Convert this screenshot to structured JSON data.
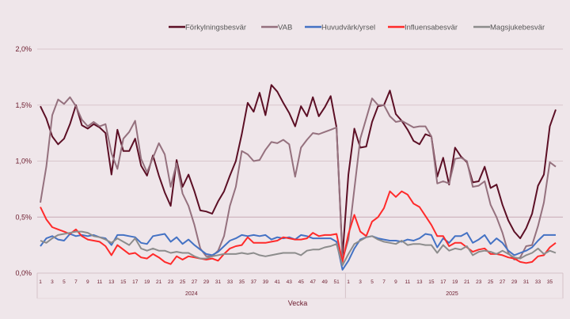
{
  "chart_data": {
    "type": "line",
    "title": "",
    "xlabel": "Vecka",
    "ylabel": "",
    "ylim": [
      0,
      2.0
    ],
    "y_ticks": [
      "0,0%",
      "0,5%",
      "1,0%",
      "1,5%",
      "2,0%"
    ],
    "y_tick_values": [
      0,
      0.5,
      1.0,
      1.5,
      2.0
    ],
    "grid": true,
    "legend_position": "top-right",
    "groups": [
      {
        "year": "2024",
        "weeks": [
          1,
          2,
          3,
          4,
          5,
          6,
          7,
          8,
          9,
          10,
          11,
          12,
          13,
          14,
          15,
          16,
          17,
          18,
          19,
          20,
          21,
          22,
          23,
          24,
          25,
          26,
          27,
          28,
          29,
          30,
          31,
          32,
          33,
          34,
          35,
          36,
          37,
          38,
          39,
          40,
          41,
          42,
          43,
          44,
          45,
          46,
          47,
          48,
          49,
          50,
          51,
          52
        ]
      },
      {
        "year": "2025",
        "weeks": [
          1,
          2,
          3,
          4,
          5,
          6,
          7,
          8,
          9,
          10,
          11,
          12,
          13,
          14,
          15,
          16,
          17,
          18,
          19,
          20,
          21,
          22,
          23,
          24,
          25,
          26,
          27,
          28,
          29,
          30,
          31,
          32,
          33,
          34,
          35,
          36
        ]
      }
    ],
    "series": [
      {
        "name": "Förkylningsbesvär",
        "color": "#5c0f25",
        "values": [
          1.49,
          1.38,
          1.22,
          1.15,
          1.2,
          1.33,
          1.5,
          1.32,
          1.29,
          1.33,
          1.3,
          1.25,
          0.88,
          1.28,
          1.09,
          1.09,
          1.2,
          0.96,
          0.87,
          1.05,
          0.87,
          0.72,
          0.6,
          1.01,
          0.77,
          0.88,
          0.73,
          0.56,
          0.55,
          0.53,
          0.64,
          0.73,
          0.87,
          1.0,
          1.24,
          1.52,
          1.44,
          1.61,
          1.41,
          1.68,
          1.62,
          1.52,
          1.43,
          1.31,
          1.49,
          1.4,
          1.57,
          1.4,
          1.48,
          1.58,
          1.3,
          0.15,
          0.88,
          1.29,
          1.12,
          1.13,
          1.35,
          1.49,
          1.5,
          1.63,
          1.42,
          1.36,
          1.28,
          1.18,
          1.15,
          1.24,
          1.22,
          0.86,
          1.03,
          0.79,
          1.12,
          1.04,
          0.99,
          0.81,
          0.82,
          0.95,
          0.76,
          0.79,
          0.61,
          0.47,
          0.37,
          0.31,
          0.4,
          0.53,
          0.78,
          0.88,
          1.31,
          1.46
        ]
      },
      {
        "name": "VAB",
        "color": "#95717e",
        "values": [
          0.63,
          0.95,
          1.41,
          1.55,
          1.51,
          1.57,
          1.49,
          1.37,
          1.31,
          1.35,
          1.31,
          1.33,
          1.07,
          0.93,
          1.2,
          1.26,
          1.36,
          1.02,
          0.9,
          1.03,
          1.16,
          1.06,
          0.77,
          0.98,
          0.71,
          0.6,
          0.43,
          0.22,
          0.15,
          0.15,
          0.2,
          0.33,
          0.6,
          0.77,
          1.09,
          1.06,
          1.0,
          1.01,
          1.1,
          1.17,
          1.16,
          1.19,
          1.15,
          0.86,
          1.12,
          1.19,
          1.25,
          1.24,
          1.26,
          1.28,
          1.3,
          0.12,
          0.3,
          0.75,
          1.2,
          1.38,
          1.56,
          1.5,
          1.5,
          1.4,
          1.35,
          1.36,
          1.33,
          1.3,
          1.31,
          1.31,
          1.22,
          0.8,
          0.82,
          0.8,
          1.02,
          1.03,
          1.0,
          0.77,
          0.78,
          0.82,
          0.61,
          0.5,
          0.36,
          0.18,
          0.12,
          0.14,
          0.24,
          0.25,
          0.42,
          0.63,
          0.99,
          0.95
        ]
      },
      {
        "name": "Huvudvärk/yrsel",
        "color": "#4472c4",
        "values": [
          0.24,
          0.31,
          0.33,
          0.3,
          0.29,
          0.35,
          0.33,
          0.34,
          0.33,
          0.34,
          0.32,
          0.31,
          0.25,
          0.34,
          0.34,
          0.33,
          0.32,
          0.27,
          0.26,
          0.33,
          0.34,
          0.35,
          0.28,
          0.32,
          0.26,
          0.3,
          0.25,
          0.21,
          0.17,
          0.16,
          0.19,
          0.24,
          0.29,
          0.31,
          0.34,
          0.33,
          0.34,
          0.33,
          0.34,
          0.3,
          0.32,
          0.31,
          0.32,
          0.3,
          0.34,
          0.33,
          0.31,
          0.31,
          0.31,
          0.31,
          0.28,
          0.03,
          0.11,
          0.22,
          0.3,
          0.32,
          0.33,
          0.31,
          0.3,
          0.29,
          0.29,
          0.28,
          0.3,
          0.29,
          0.31,
          0.35,
          0.34,
          0.23,
          0.31,
          0.27,
          0.33,
          0.33,
          0.36,
          0.27,
          0.3,
          0.34,
          0.26,
          0.31,
          0.27,
          0.2,
          0.16,
          0.18,
          0.2,
          0.23,
          0.29,
          0.34,
          0.34,
          0.34
        ]
      },
      {
        "name": "Influensabesvär",
        "color": "#ff2a2a",
        "values": [
          0.59,
          0.48,
          0.41,
          0.39,
          0.37,
          0.35,
          0.39,
          0.33,
          0.3,
          0.29,
          0.28,
          0.24,
          0.16,
          0.25,
          0.21,
          0.17,
          0.18,
          0.14,
          0.13,
          0.17,
          0.14,
          0.1,
          0.08,
          0.15,
          0.12,
          0.15,
          0.14,
          0.13,
          0.12,
          0.13,
          0.11,
          0.17,
          0.22,
          0.24,
          0.25,
          0.32,
          0.27,
          0.27,
          0.27,
          0.28,
          0.29,
          0.32,
          0.31,
          0.3,
          0.3,
          0.31,
          0.36,
          0.33,
          0.34,
          0.34,
          0.35,
          0.1,
          0.35,
          0.52,
          0.37,
          0.33,
          0.46,
          0.5,
          0.58,
          0.73,
          0.68,
          0.73,
          0.7,
          0.62,
          0.59,
          0.51,
          0.43,
          0.33,
          0.33,
          0.24,
          0.27,
          0.27,
          0.23,
          0.19,
          0.21,
          0.22,
          0.17,
          0.17,
          0.16,
          0.14,
          0.13,
          0.1,
          0.09,
          0.1,
          0.15,
          0.16,
          0.23,
          0.27
        ]
      },
      {
        "name": "Magsjukebesvär",
        "color": "#8c8c8c",
        "values": [
          0.29,
          0.27,
          0.31,
          0.34,
          0.35,
          0.36,
          0.37,
          0.37,
          0.36,
          0.33,
          0.32,
          0.3,
          0.27,
          0.31,
          0.28,
          0.25,
          0.31,
          0.22,
          0.2,
          0.22,
          0.2,
          0.2,
          0.18,
          0.19,
          0.18,
          0.18,
          0.15,
          0.13,
          0.13,
          0.15,
          0.16,
          0.17,
          0.17,
          0.17,
          0.18,
          0.17,
          0.18,
          0.16,
          0.15,
          0.16,
          0.17,
          0.18,
          0.18,
          0.18,
          0.16,
          0.2,
          0.21,
          0.21,
          0.23,
          0.24,
          0.26,
          0.07,
          0.17,
          0.26,
          0.29,
          0.32,
          0.33,
          0.3,
          0.28,
          0.27,
          0.26,
          0.29,
          0.25,
          0.26,
          0.26,
          0.25,
          0.25,
          0.18,
          0.25,
          0.2,
          0.22,
          0.21,
          0.24,
          0.16,
          0.19,
          0.2,
          0.19,
          0.17,
          0.2,
          0.17,
          0.14,
          0.13,
          0.16,
          0.18,
          0.22,
          0.17,
          0.2,
          0.18
        ]
      }
    ]
  }
}
